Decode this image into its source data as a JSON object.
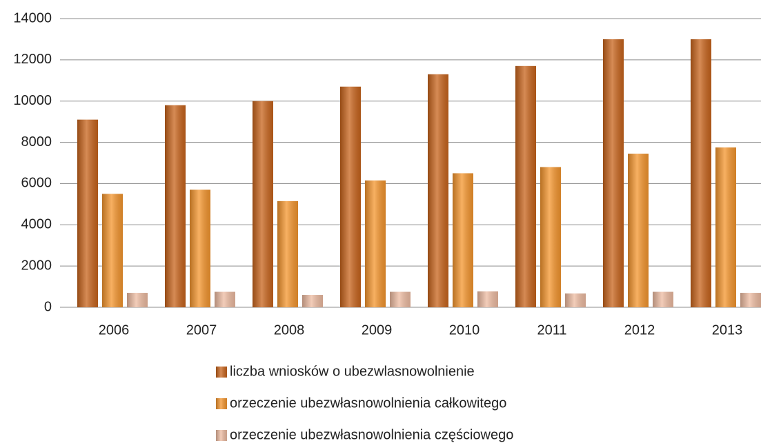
{
  "chart_data": {
    "type": "bar",
    "categories": [
      "2006",
      "2007",
      "2008",
      "2009",
      "2010",
      "2011",
      "2012",
      "2013"
    ],
    "series": [
      {
        "name": "liczba wniosków o ubezwlasnowolnienie",
        "color": "#c8641c",
        "values": [
          9100,
          9800,
          10000,
          10700,
          11300,
          11700,
          13000,
          13000
        ]
      },
      {
        "name": "orzeczenie ubezwłasnowolnienia całkowitego",
        "color": "#f5962e",
        "values": [
          5500,
          5700,
          5150,
          6150,
          6500,
          6800,
          7450,
          7750
        ]
      },
      {
        "name": "orzeczenie ubezwłasnowolnienia częściowego",
        "color": "#eebca2",
        "values": [
          700,
          750,
          600,
          750,
          770,
          670,
          750,
          700
        ]
      }
    ],
    "ylim": [
      0,
      14000
    ],
    "yticks": [
      0,
      2000,
      4000,
      6000,
      8000,
      10000,
      12000,
      14000
    ],
    "grid": true,
    "legend": "bottom"
  }
}
